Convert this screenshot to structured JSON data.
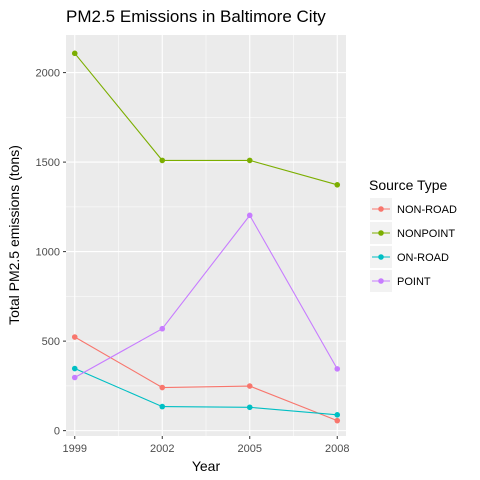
{
  "chart_data": {
    "type": "line",
    "title": "PM2.5 Emissions in Baltimore City",
    "xlabel": "Year",
    "ylabel": "Total PM2.5 emissions (tons)",
    "x": [
      1999,
      2002,
      2005,
      2008
    ],
    "x_tick_labels": [
      "1999",
      "2002",
      "2005",
      "2008"
    ],
    "y_ticks": [
      0,
      500,
      1000,
      1500,
      2000
    ],
    "y_tick_labels": [
      "0",
      "500",
      "1000",
      "1500",
      "2000"
    ],
    "xlim": [
      1998.7,
      2008.3
    ],
    "ylim": [
      -30,
      2210
    ],
    "grid": true,
    "legend_title": "Source Type",
    "legend_position": "right",
    "series": [
      {
        "name": "NON-ROAD",
        "color": "#F8766D",
        "values": [
          522.9,
          240.8,
          248.9,
          55.8
        ]
      },
      {
        "name": "NONPOINT",
        "color": "#7CAE00",
        "values": [
          2107.6,
          1509.5,
          1509.5,
          1373.2
        ]
      },
      {
        "name": "ON-ROAD",
        "color": "#00BFC4",
        "values": [
          346.8,
          134.3,
          130.4,
          88.3
        ]
      },
      {
        "name": "POINT",
        "color": "#C77CFF",
        "values": [
          296.8,
          569.3,
          1202.5,
          344.98
        ]
      }
    ]
  }
}
